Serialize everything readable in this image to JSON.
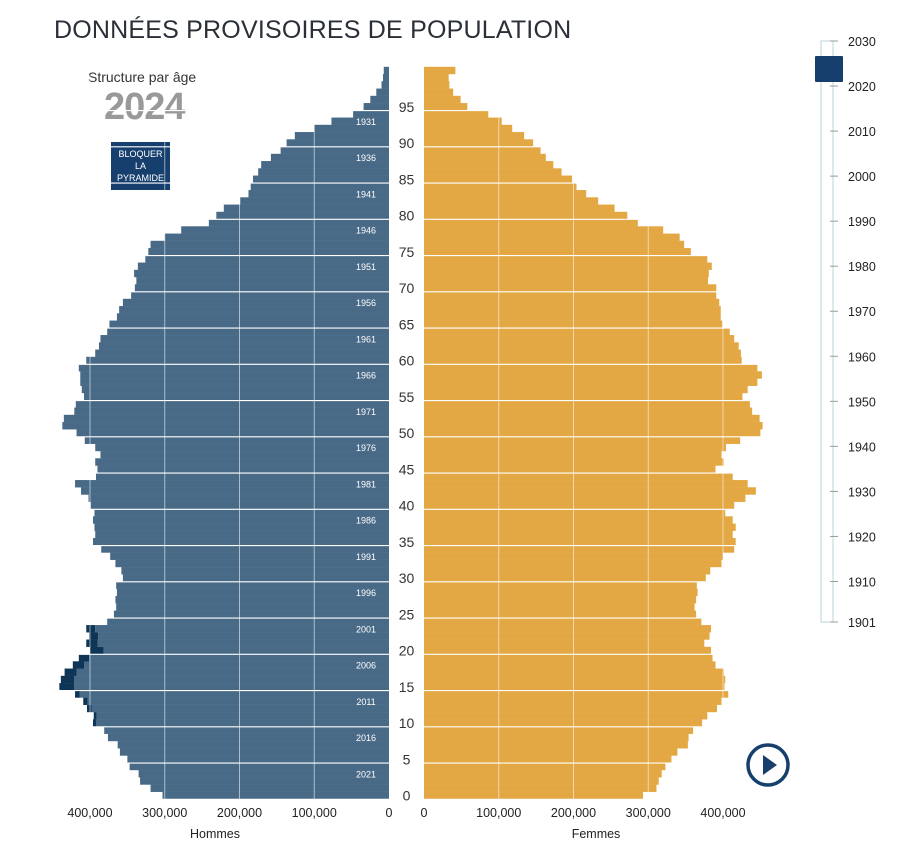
{
  "header": {
    "title": "DONNÉES PROVISOIRES DE POPULATION",
    "subtitle": "Structure par âge",
    "year": "2024"
  },
  "controls": {
    "lock_label": "BLOQUER LA PYRAMIDE",
    "play_icon": "play-icon"
  },
  "colors": {
    "male": "#486a87",
    "male_excess": "#0f3556",
    "female": "#e3a843",
    "female_excess": "#d88a0a",
    "slider_handle": "#173f6e"
  },
  "slider": {
    "labels": [
      "2030",
      "2020",
      "2010",
      "2000",
      "1990",
      "1980",
      "1970",
      "1960",
      "1950",
      "1940",
      "1930",
      "1920",
      "1910",
      "1901"
    ],
    "years": [
      2030,
      2020,
      2010,
      2000,
      1990,
      1980,
      1970,
      1960,
      1950,
      1940,
      1930,
      1920,
      1910,
      1901
    ],
    "selected": 2024
  },
  "chart_data": {
    "type": "bar",
    "orientation": "horizontal-pyramid",
    "ages": [
      0,
      1,
      2,
      3,
      4,
      5,
      6,
      7,
      8,
      9,
      10,
      11,
      12,
      13,
      14,
      15,
      16,
      17,
      18,
      19,
      20,
      21,
      22,
      23,
      24,
      25,
      26,
      27,
      28,
      29,
      30,
      31,
      32,
      33,
      34,
      35,
      36,
      37,
      38,
      39,
      40,
      41,
      42,
      43,
      44,
      45,
      46,
      47,
      48,
      49,
      50,
      51,
      52,
      53,
      54,
      55,
      56,
      57,
      58,
      59,
      60,
      61,
      62,
      63,
      64,
      65,
      66,
      67,
      68,
      69,
      70,
      71,
      72,
      73,
      74,
      75,
      76,
      77,
      78,
      79,
      80,
      81,
      82,
      83,
      84,
      85,
      86,
      87,
      88,
      89,
      90,
      91,
      92,
      93,
      94,
      95,
      96,
      97,
      98,
      99,
      100
    ],
    "series": [
      {
        "name": "Hommes",
        "values": [
          303000,
          319000,
          333000,
          335000,
          347000,
          350000,
          360000,
          363000,
          376000,
          381000,
          392000,
          391000,
          398000,
          403000,
          414000,
          421000,
          421000,
          418000,
          408000,
          401000,
          382000,
          390000,
          389000,
          393000,
          377000,
          368000,
          365000,
          366000,
          364000,
          365000,
          356000,
          358000,
          366000,
          373000,
          385000,
          396000,
          393000,
          394000,
          396000,
          394000,
          399000,
          402000,
          412000,
          420000,
          392000,
          390000,
          393000,
          386000,
          393000,
          407000,
          418000,
          437000,
          435000,
          421000,
          419000,
          408000,
          411000,
          413000,
          413000,
          415000,
          405000,
          393000,
          388000,
          386000,
          377000,
          374000,
          364000,
          361000,
          356000,
          345000,
          340000,
          338000,
          341000,
          336000,
          326000,
          322000,
          319000,
          300000,
          278000,
          241000,
          231000,
          221000,
          199000,
          188000,
          185000,
          182000,
          175000,
          171000,
          158000,
          145000,
          137000,
          126000,
          100000,
          77000,
          48000,
          34000,
          25000,
          17000,
          10000,
          8000,
          7000
        ]
      },
      {
        "name": "Femmes",
        "values": [
          293000,
          311000,
          314000,
          318000,
          323000,
          331000,
          339000,
          353000,
          354000,
          360000,
          372000,
          379000,
          392000,
          398000,
          407000,
          402000,
          403000,
          401000,
          390000,
          386000,
          384000,
          375000,
          382000,
          384000,
          371000,
          364000,
          362000,
          364000,
          366000,
          365000,
          377000,
          383000,
          398000,
          400000,
          415000,
          417000,
          413000,
          417000,
          413000,
          403000,
          415000,
          430000,
          444000,
          433000,
          413000,
          390000,
          401000,
          398000,
          404000,
          423000,
          450000,
          453000,
          449000,
          439000,
          436000,
          426000,
          433000,
          446000,
          452000,
          446000,
          425000,
          424000,
          421000,
          415000,
          409000,
          399000,
          397000,
          397000,
          395000,
          391000,
          391000,
          380000,
          381000,
          385000,
          379000,
          357000,
          348000,
          342000,
          320000,
          286000,
          272000,
          255000,
          233000,
          217000,
          204000,
          198000,
          184000,
          173000,
          163000,
          156000,
          146000,
          134000,
          118000,
          104000,
          86000,
          58000,
          49000,
          39000,
          34000,
          33000,
          42000
        ]
      }
    ],
    "excess": {
      "Hommes": [
        0,
        0,
        0,
        0,
        0,
        0,
        0,
        0,
        0,
        0,
        4000,
        4000,
        6000,
        6000,
        6000,
        20000,
        18000,
        16000,
        15000,
        14000,
        18000,
        15000,
        12000,
        12000,
        0,
        0,
        0,
        0,
        0,
        0,
        0,
        0,
        0,
        0,
        0,
        0,
        0,
        0,
        0,
        0,
        0,
        0,
        0,
        0,
        0,
        0,
        0,
        0,
        0,
        0,
        0,
        0,
        0,
        0,
        0,
        0,
        0,
        0,
        0,
        0,
        0,
        0,
        0,
        0,
        0,
        0,
        0,
        0,
        0,
        0,
        0,
        0,
        0,
        0,
        0,
        0,
        0,
        0,
        0,
        0,
        0,
        0,
        0,
        0,
        0,
        0,
        0,
        0,
        0,
        0,
        0,
        0,
        0,
        0,
        0,
        0,
        0,
        0,
        0,
        0,
        0
      ],
      "Femmes": [
        0,
        0,
        0,
        0,
        0,
        0,
        0,
        0,
        0,
        0,
        0,
        0,
        0,
        0,
        0,
        0,
        0,
        0,
        0,
        0,
        0,
        0,
        0,
        0,
        0,
        0,
        0,
        0,
        0,
        0,
        0,
        0,
        0,
        0,
        0,
        0,
        0,
        0,
        0,
        0,
        0,
        0,
        0,
        0,
        0,
        0,
        0,
        0,
        0,
        0,
        0,
        0,
        0,
        0,
        0,
        0,
        0,
        0,
        0,
        0,
        0,
        0,
        0,
        0,
        0,
        0,
        0,
        0,
        0,
        0,
        0,
        0,
        0,
        0,
        0,
        0,
        0,
        0,
        0,
        0,
        0,
        0,
        0,
        0,
        0,
        0,
        0,
        0,
        0,
        0,
        0,
        0,
        0,
        0,
        0,
        0,
        0,
        0,
        0,
        0,
        0
      ]
    },
    "women_excess_pct": [
      0,
      0,
      0,
      0,
      0,
      0,
      0,
      0,
      0,
      0,
      0,
      0,
      0,
      0,
      0,
      0,
      0,
      0,
      0,
      0,
      0,
      0,
      0,
      0,
      0,
      0,
      0,
      0,
      0,
      0,
      0,
      0,
      0,
      0,
      0,
      0,
      0,
      0,
      0,
      0,
      0,
      0,
      0,
      0,
      0,
      0,
      0,
      0,
      0,
      0,
      0,
      0,
      0,
      0,
      0,
      0,
      0,
      0,
      0,
      0,
      0,
      0,
      0,
      0,
      0,
      0,
      0,
      0,
      0,
      0,
      0,
      0,
      0,
      0,
      0,
      0,
      0,
      0,
      0,
      0,
      0,
      0,
      0,
      0,
      0,
      0,
      0,
      0,
      0,
      0,
      0,
      0,
      0,
      0,
      0,
      0,
      0,
      0,
      0,
      0,
      0
    ],
    "age_tick_labels": [
      "0",
      "5",
      "10",
      "15",
      "20",
      "25",
      "30",
      "35",
      "40",
      "45",
      "50",
      "55",
      "60",
      "65",
      "70",
      "75",
      "80",
      "85",
      "90",
      "95"
    ],
    "age_ticks": [
      0,
      5,
      10,
      15,
      20,
      25,
      30,
      35,
      40,
      45,
      50,
      55,
      60,
      65,
      70,
      75,
      80,
      85,
      90,
      95
    ],
    "birth_year_labels": [
      "2021",
      "2016",
      "2011",
      "2006",
      "2001",
      "1996",
      "1991",
      "1986",
      "1981",
      "1976",
      "1971",
      "1966",
      "1961",
      "1956",
      "1951",
      "1946",
      "1941",
      "1936",
      "1931"
    ],
    "birth_year_ages": [
      3,
      8,
      13,
      18,
      23,
      28,
      33,
      38,
      43,
      48,
      53,
      58,
      63,
      68,
      73,
      78,
      83,
      88,
      93
    ],
    "x_tick_labels_left": [
      "400,000",
      "300,000",
      "200,000",
      "100,000",
      "0"
    ],
    "x_tick_values_left": [
      400000,
      300000,
      200000,
      100000,
      0
    ],
    "x_tick_labels_right": [
      "0",
      "100,000",
      "200,000",
      "300,000",
      "400,000"
    ],
    "x_tick_values_right": [
      0,
      100000,
      200000,
      300000,
      400000
    ],
    "xlabel_left": "Hommes",
    "xlabel_right": "Femmes",
    "xlim": [
      0,
      440000
    ],
    "ylim": [
      0,
      100
    ]
  }
}
